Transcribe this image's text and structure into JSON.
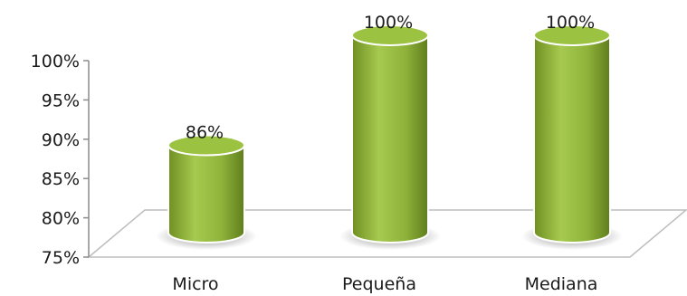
{
  "chart_data": {
    "type": "bar",
    "style": "3d-cylinder",
    "categories": [
      "Micro",
      "Pequeña",
      "Mediana"
    ],
    "values": [
      86,
      100,
      100
    ],
    "data_labels": [
      "86%",
      "100%",
      "100%"
    ],
    "y_ticks": [
      "75%",
      "80%",
      "85%",
      "90%",
      "95%",
      "100%"
    ],
    "ylim": [
      75,
      100
    ],
    "grid": false,
    "legend": "none",
    "bar_color": "#8fb33a",
    "bar_top_color": "#9bc240",
    "bar_edge_color": "#ffffff"
  }
}
